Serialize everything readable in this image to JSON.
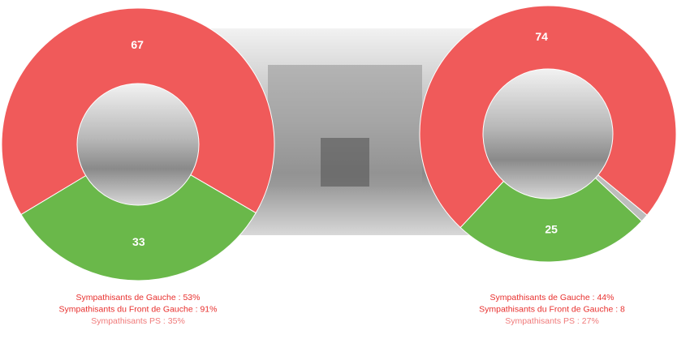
{
  "chart_data": [
    {
      "type": "pie",
      "donut": true,
      "values": [
        67,
        33
      ],
      "value_labels": [
        "67",
        "33"
      ],
      "colors": [
        "#f05a5a",
        "#6ab84a"
      ],
      "annotations": [
        "Sympathisants de Gauche : 53%",
        "Sympathisants du Front de Gauche : 91%",
        "Sympathisants  PS : 35%"
      ]
    },
    {
      "type": "pie",
      "donut": true,
      "values": [
        74,
        1,
        25
      ],
      "value_labels": [
        "74",
        null,
        "25"
      ],
      "colors": [
        "#f05a5a",
        "#bdbdbd",
        "#6ab84a"
      ],
      "annotations": [
        "Sympathisants de Gauche : 44%",
        "Sympathisants du Front de Gauche : 8",
        "Sympathisants  PS : 27%"
      ]
    }
  ]
}
